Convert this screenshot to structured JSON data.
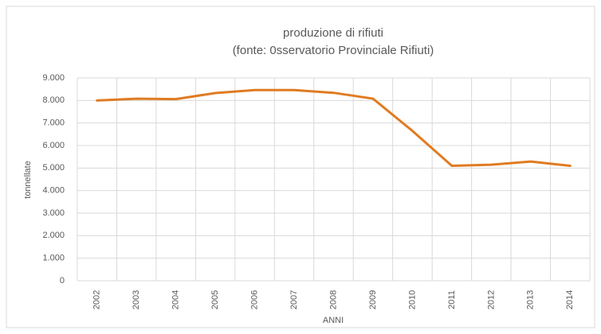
{
  "chart_data": {
    "type": "line",
    "title": "produzione di rifiuti",
    "subtitle": "(fonte: 0sservatorio Provinciale Rifiuti)",
    "x_label": "ANNI",
    "y_label": "tonnellate",
    "categories": [
      "2002",
      "2003",
      "2004",
      "2005",
      "2006",
      "2007",
      "2008",
      "2009",
      "2010",
      "2011",
      "2012",
      "2013",
      "2014"
    ],
    "series": [
      {
        "name": "produzione di rifiuti",
        "color": "#e07b22",
        "values": [
          8000,
          8080,
          8060,
          8330,
          8460,
          8460,
          8340,
          8080,
          6650,
          5100,
          5150,
          5290,
          5100
        ]
      }
    ],
    "ylim": [
      0,
      9000
    ],
    "yticks": [
      0,
      {
        "value": 1000,
        "label": "1.000"
      },
      {
        "value": 2000,
        "label": "2.000"
      },
      {
        "value": 3000,
        "label": "3.000"
      },
      {
        "value": 4000,
        "label": "4.000"
      },
      {
        "value": 5000,
        "label": "5.000"
      },
      {
        "value": 6000,
        "label": "6.000"
      },
      {
        "value": 7000,
        "label": "7.000"
      },
      {
        "value": 8000,
        "label": "8.000"
      },
      {
        "value": 9000,
        "label": "9.000"
      }
    ],
    "grid": true
  }
}
